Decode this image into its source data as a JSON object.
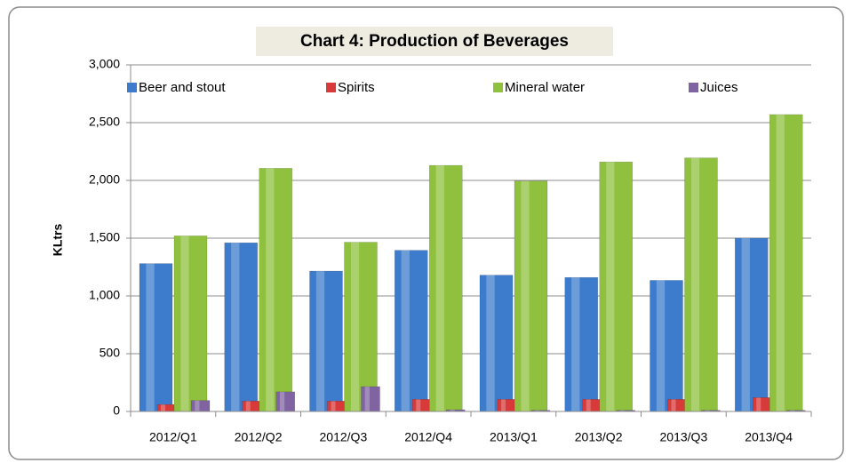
{
  "chart_data": {
    "type": "bar",
    "title": "Chart 4:  Production of Beverages",
    "y_label": "KLtrs",
    "categories": [
      "2012/Q1",
      "2012/Q2",
      "2012/Q3",
      "2012/Q4",
      "2013/Q1",
      "2013/Q2",
      "2013/Q3",
      "2013/Q4"
    ],
    "series": [
      {
        "name": "Beer and stout",
        "color": "#3d7ccc",
        "values": [
          1280,
          1460,
          1215,
          1395,
          1180,
          1160,
          1135,
          1500
        ]
      },
      {
        "name": "Spirits",
        "color": "#d83a3a",
        "values": [
          60,
          90,
          90,
          105,
          105,
          105,
          105,
          120
        ]
      },
      {
        "name": "Mineral water",
        "color": "#8fc13e",
        "values": [
          1520,
          2105,
          1465,
          2130,
          1995,
          2160,
          2195,
          2570
        ]
      },
      {
        "name": "Juices",
        "color": "#8064a2",
        "values": [
          95,
          170,
          215,
          15,
          10,
          10,
          10,
          10
        ]
      }
    ],
    "ylim": [
      0,
      3000
    ],
    "yticks": [
      0,
      500,
      {
        "value": 1000,
        "label": "1,000"
      },
      {
        "value": 1500,
        "label": "1,500"
      },
      {
        "value": 2000,
        "label": "2,000"
      },
      {
        "value": 2500,
        "label": "2,500"
      },
      {
        "value": 3000,
        "label": "3,000"
      }
    ],
    "grid": true,
    "legend": "top"
  }
}
